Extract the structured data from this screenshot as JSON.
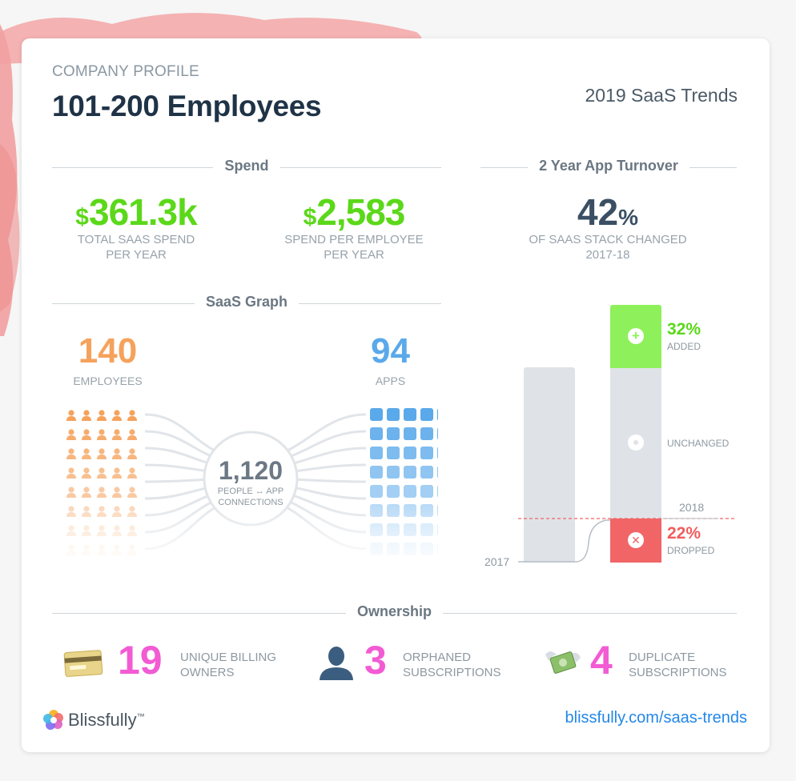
{
  "header": {
    "eyebrow": "COMPANY PROFILE",
    "title": "101-200 Employees",
    "report_name": "2019 SaaS Trends"
  },
  "spend": {
    "heading": "Spend",
    "total": {
      "currency": "$",
      "value": "361.3k",
      "caption_line1": "TOTAL SAAS SPEND",
      "caption_line2": "PER YEAR"
    },
    "per_employee": {
      "currency": "$",
      "value": "2,583",
      "caption_line1": "SPEND PER EMPLOYEE",
      "caption_line2": "PER YEAR"
    }
  },
  "turnover": {
    "heading": "2 Year App Turnover",
    "value": "42",
    "unit": "%",
    "caption_line1": "OF SAAS STACK CHANGED",
    "caption_line2": "2017-18",
    "year_2017": "2017",
    "year_2018": "2018",
    "added": {
      "pct": "32%",
      "label": "ADDED",
      "fraction": 0.32
    },
    "unchanged": {
      "label": "UNCHANGED"
    },
    "dropped": {
      "pct": "22%",
      "label": "DROPPED",
      "fraction": 0.22
    },
    "colors": {
      "added": "#8ef05a",
      "unchanged": "#dfe3e8",
      "dropped": "#f16566",
      "base": "#dfe3e8"
    }
  },
  "saas_graph": {
    "heading": "SaaS Graph",
    "employees": {
      "value": "140",
      "label": "EMPLOYEES",
      "icon": "person-icon"
    },
    "apps": {
      "value": "94",
      "label": "APPS",
      "icon": "app-square-icon"
    },
    "connections": {
      "value": "1,120",
      "caption_line1": "PEOPLE ↔ APP",
      "caption_line2": "CONNECTIONS"
    }
  },
  "ownership": {
    "heading": "Ownership",
    "items": [
      {
        "icon": "credit-card-icon",
        "value": "19",
        "caption_line1": "UNIQUE BILLING",
        "caption_line2": "OWNERS"
      },
      {
        "icon": "person-silhouette-icon",
        "value": "3",
        "caption_line1": "ORPHANED",
        "caption_line2": "SUBSCRIPTIONS"
      },
      {
        "icon": "money-with-wings-icon",
        "value": "4",
        "caption_line1": "DUPLICATE",
        "caption_line2": "SUBSCRIPTIONS"
      }
    ]
  },
  "footer": {
    "brand": "Blissfully",
    "trademark": "™",
    "link": "blissfully.com/saas-trends"
  }
}
